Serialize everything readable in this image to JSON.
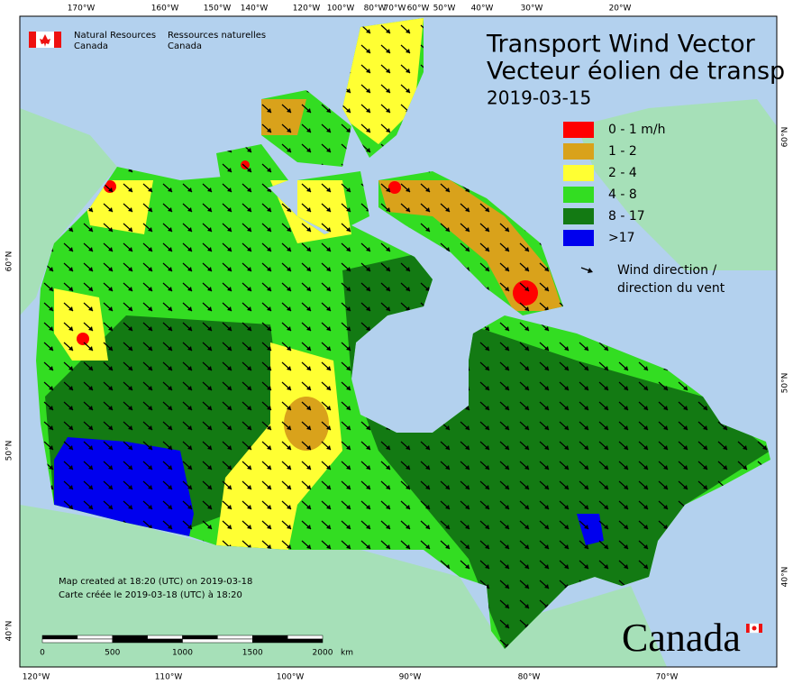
{
  "agency": {
    "en_line1": "Natural Resources",
    "en_line2": "Canada",
    "fr_line1": "Ressources naturelles",
    "fr_line2": "Canada"
  },
  "title": {
    "en": "Transport Wind Vector",
    "fr": "Vecteur éolien de transp",
    "date": "2019-03-15"
  },
  "legend": {
    "items": [
      {
        "label": "0 - 1 m/h",
        "color": "#ff0000"
      },
      {
        "label": "1 - 2",
        "color": "#d9a21b"
      },
      {
        "label": "2 - 4",
        "color": "#ffff33"
      },
      {
        "label": "4 - 8",
        "color": "#33dd22"
      },
      {
        "label": "8 - 17",
        "color": "#137a13"
      },
      {
        "label": ">17",
        "color": "#0000ee"
      }
    ],
    "arrow_line1": "Wind direction /",
    "arrow_line2": "direction du vent"
  },
  "graticule": {
    "top": [
      "170°W",
      "160°W",
      "150°W",
      "140°W",
      "120°W",
      "100°W",
      "80°W",
      "70°W",
      "60°W",
      "50°W",
      "40°W",
      "30°W",
      "20°W"
    ],
    "bottom": [
      "120°W",
      "110°W",
      "100°W",
      "90°W",
      "80°W",
      "70°W"
    ],
    "left": [
      "60°N",
      "50°N",
      "40°N"
    ],
    "right": [
      "60°N",
      "50°N",
      "40°N"
    ]
  },
  "notes": {
    "en": "Map created at 18:20 (UTC) on 2019-03-18",
    "fr": "Carte créée le 2019-03-18 (UTC) à 18:20"
  },
  "scale_bar": {
    "ticks": [
      0,
      500,
      1000,
      1500,
      2000
    ],
    "unit": "km"
  },
  "wordmark": "Canada"
}
